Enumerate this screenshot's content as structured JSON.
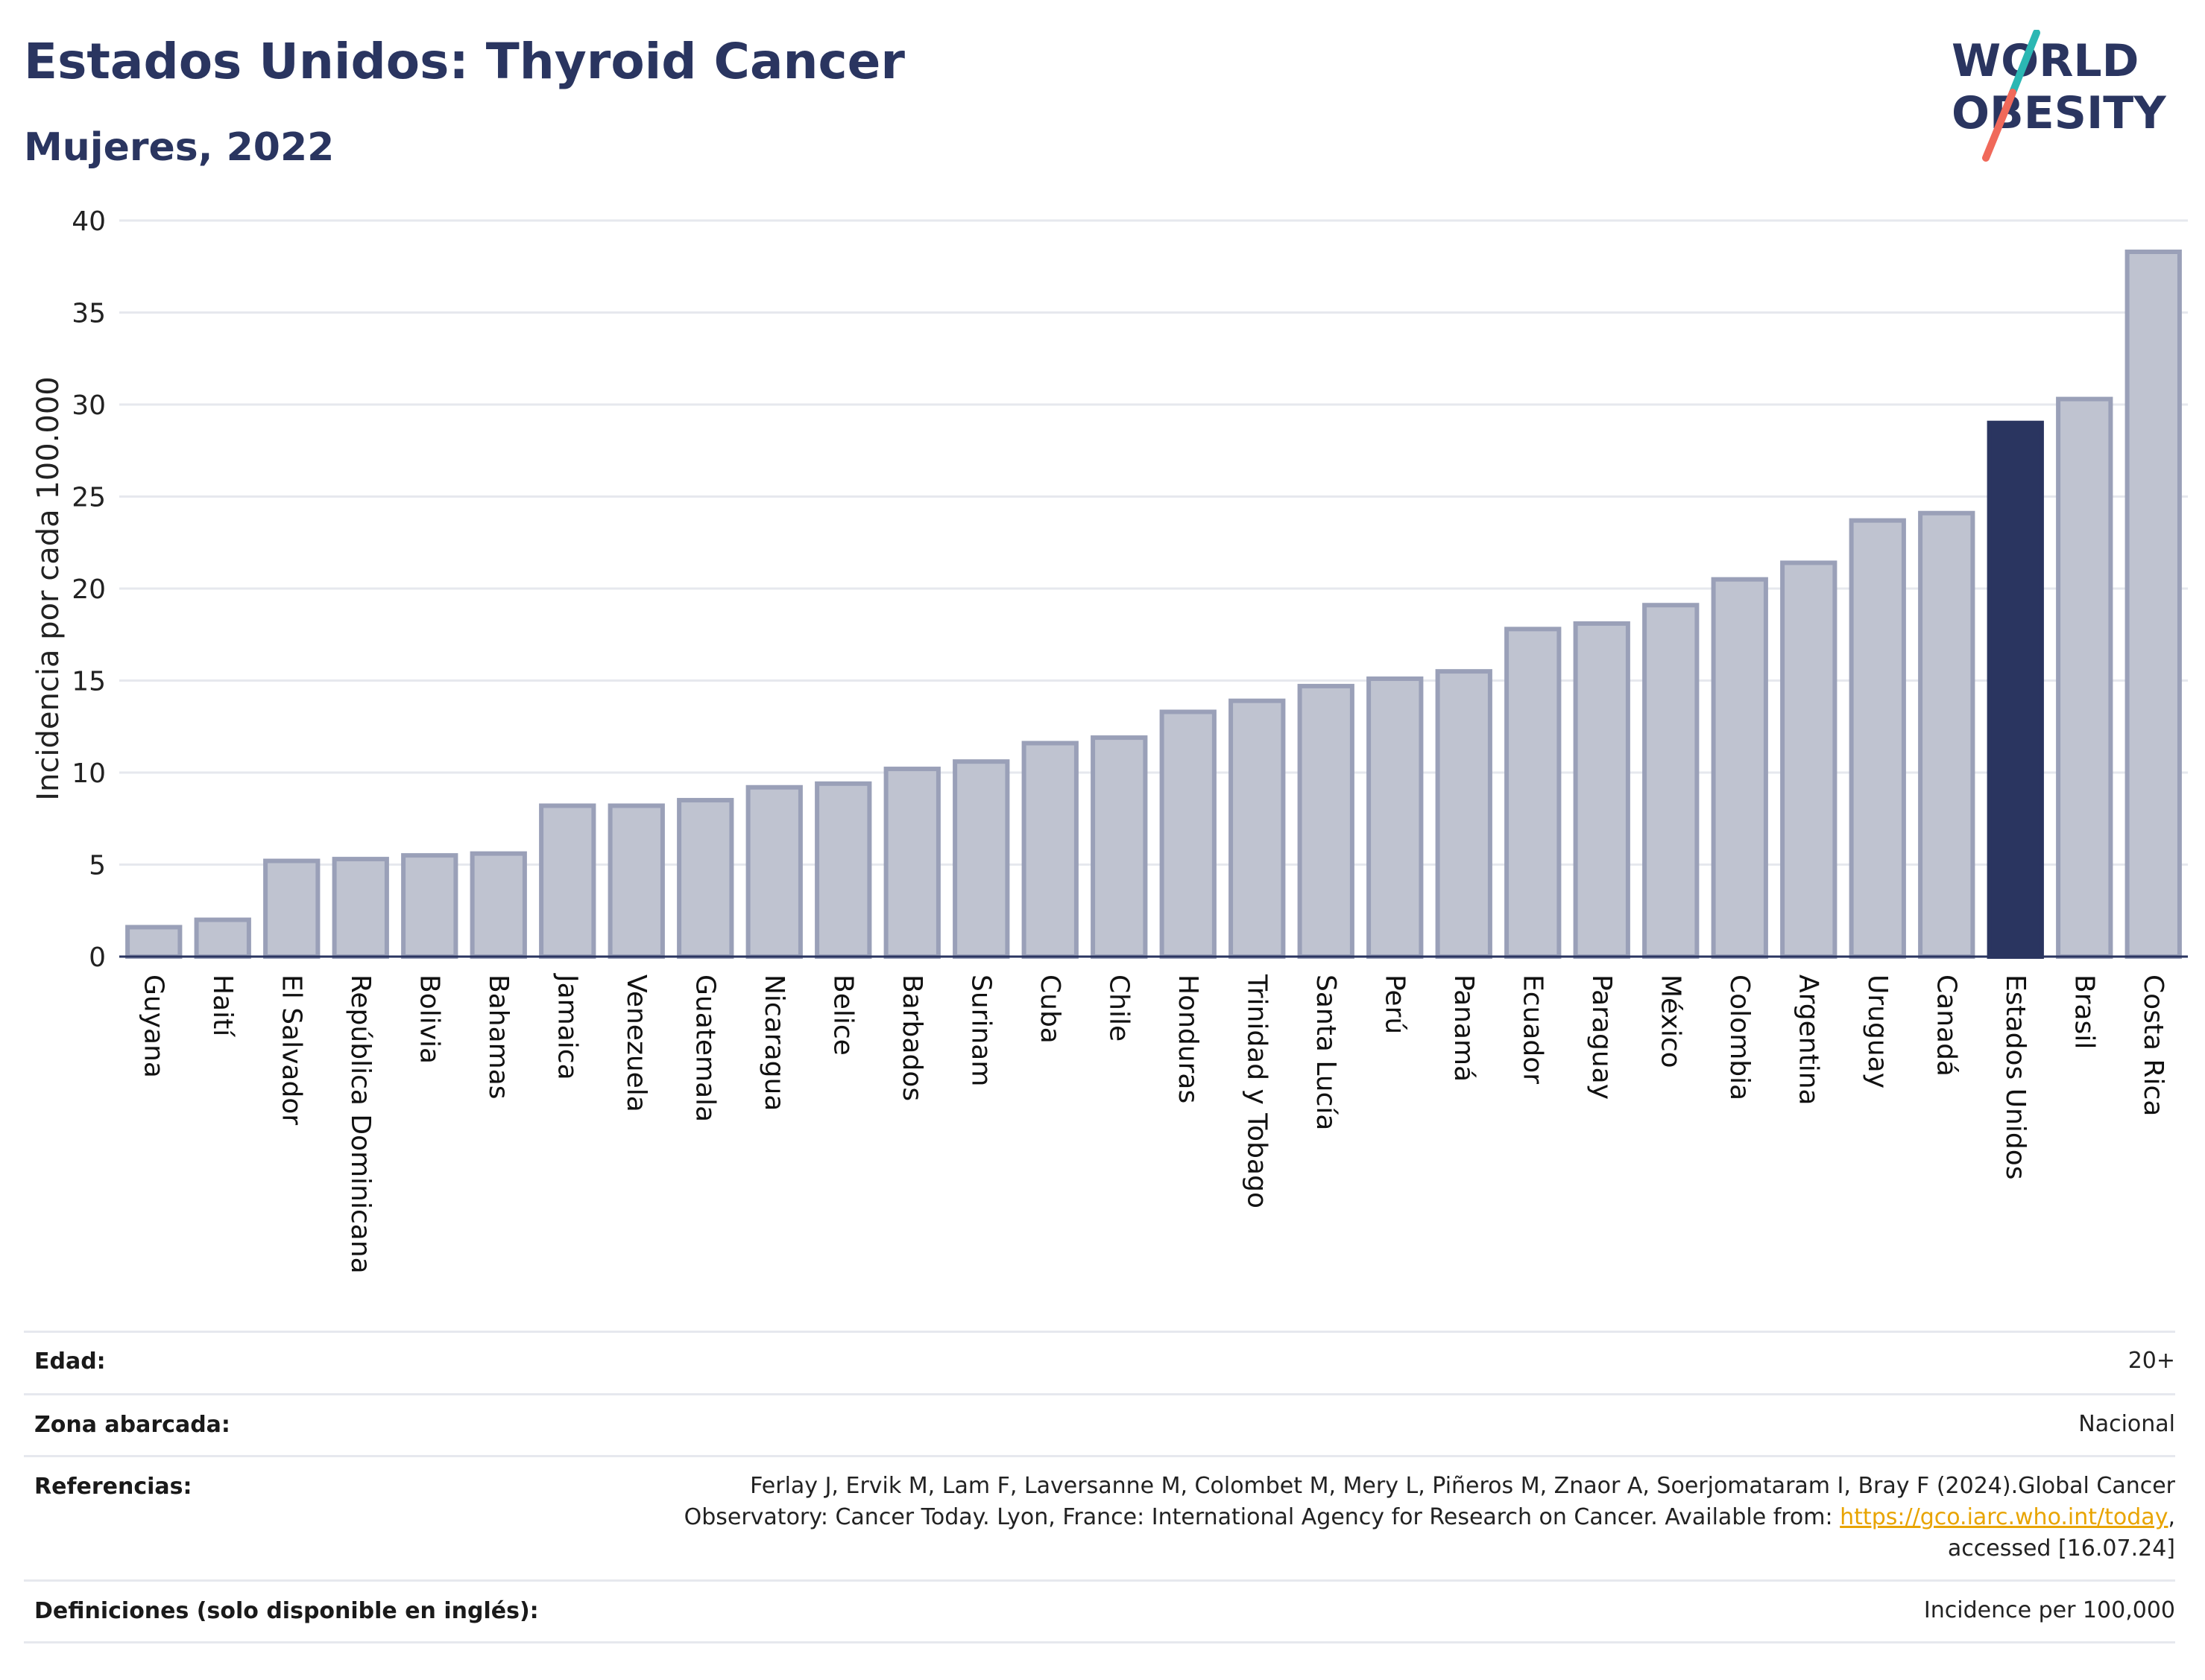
{
  "header": {
    "title": "Estados Unidos: Thyroid Cancer",
    "subtitle": "Mujeres, 2022"
  },
  "logo": {
    "line1": "WORLD",
    "line2": "OBESITY",
    "colors": {
      "text": "#2a3560",
      "slash_top": "#2bb7b3",
      "slash_bottom": "#f0695a"
    }
  },
  "colors": {
    "bar_fill": "#bfc3d0",
    "bar_stroke": "#9aa0b8",
    "highlight": "#2a3560",
    "grid": "#e6e8ee",
    "axis": "#2a3560"
  },
  "chart_data": {
    "type": "bar",
    "ylabel": "Incidencia por cada 100.000",
    "xlabel": "",
    "ylim": [
      0,
      40
    ],
    "yticks": [
      0,
      5,
      10,
      15,
      20,
      25,
      30,
      35,
      40
    ],
    "grid": true,
    "highlight_category": "Estados Unidos",
    "categories": [
      "Guyana",
      "Haití",
      "El Salvador",
      "República Dominicana",
      "Bolivia",
      "Bahamas",
      "Jamaica",
      "Venezuela",
      "Guatemala",
      "Nicaragua",
      "Belice",
      "Barbados",
      "Surinam",
      "Cuba",
      "Chile",
      "Honduras",
      "Trinidad y Tobago",
      "Santa Lucía",
      "Perú",
      "Panamá",
      "Ecuador",
      "Paraguay",
      "México",
      "Colombia",
      "Argentina",
      "Uruguay",
      "Canadá",
      "Estados Unidos",
      "Brasil",
      "Costa Rica"
    ],
    "values": [
      1.6,
      2.0,
      5.2,
      5.3,
      5.5,
      5.6,
      8.2,
      8.2,
      8.5,
      9.2,
      9.4,
      10.2,
      10.6,
      11.6,
      11.9,
      13.3,
      13.9,
      14.7,
      15.1,
      15.5,
      17.8,
      18.1,
      19.1,
      20.5,
      21.4,
      23.7,
      24.1,
      29.0,
      30.3,
      38.3
    ]
  },
  "meta": {
    "age_label": "Edad:",
    "age_value": "20+",
    "area_label": "Zona abarcada:",
    "area_value": "Nacional",
    "refs_label": "Referencias:",
    "refs_line1": "Ferlay J, Ervik M, Lam F, Laversanne M, Colombet M, Mery L, Piñeros M, Znaor A, Soerjomataram I, Bray F (2024).Global Cancer",
    "refs_line2_pre": "Observatory: Cancer Today. Lyon, France: International Agency for Research on Cancer. Available from: ",
    "refs_link": "https://gco.iarc.who.int/today",
    "refs_line2_post": ",",
    "refs_line3": "accessed [16.07.24]",
    "defs_label": "Definiciones (solo disponible en inglés):",
    "defs_value": "Incidence per 100,000"
  }
}
